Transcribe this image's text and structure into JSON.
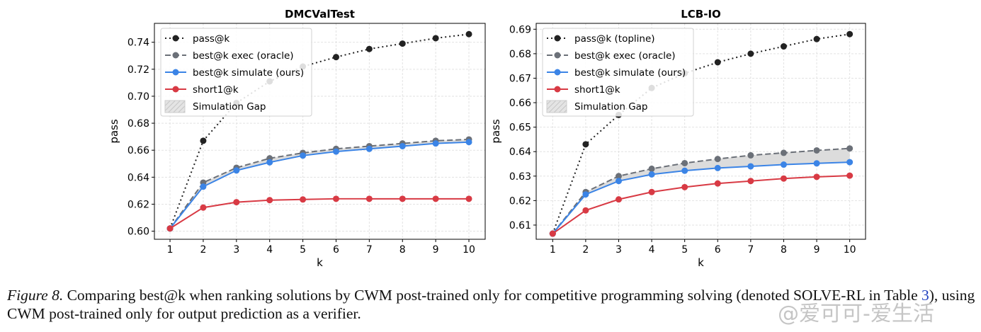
{
  "chart_data": [
    {
      "type": "line",
      "title": "DMCValTest",
      "xlabel": "k",
      "ylabel": "pass",
      "x": [
        1,
        2,
        3,
        4,
        5,
        6,
        7,
        8,
        9,
        10
      ],
      "xlim": [
        0.53,
        10.49
      ],
      "ylim": [
        0.594,
        0.754
      ],
      "yticks": [
        "0.60",
        "0.62",
        "0.64",
        "0.66",
        "0.68",
        "0.70",
        "0.72",
        "0.74"
      ],
      "grid": true,
      "legend_position": "top-left",
      "series": [
        {
          "name": "pass@k",
          "style": "dotted",
          "color": "#222222",
          "values": [
            0.602,
            0.667,
            0.695,
            0.711,
            0.722,
            0.729,
            0.735,
            0.739,
            0.743,
            0.746
          ]
        },
        {
          "name": "best@k exec (oracle)",
          "style": "dashed",
          "color": "#6b7078",
          "values": [
            0.602,
            0.636,
            0.647,
            0.654,
            0.658,
            0.661,
            0.663,
            0.665,
            0.667,
            0.668
          ]
        },
        {
          "name": "best@k simulate (ours)",
          "style": "solid",
          "color": "#3b84e6",
          "values": [
            0.602,
            0.633,
            0.645,
            0.651,
            0.656,
            0.659,
            0.661,
            0.663,
            0.665,
            0.666
          ]
        },
        {
          "name": "short1@k",
          "style": "solid",
          "color": "#d83a44",
          "values": [
            0.602,
            0.6175,
            0.6215,
            0.623,
            0.6235,
            0.624,
            0.624,
            0.624,
            0.624,
            0.624
          ]
        }
      ],
      "gap_label": "Simulation Gap"
    },
    {
      "type": "line",
      "title": "LCB-IO",
      "xlabel": "k",
      "ylabel": "pass",
      "x": [
        1,
        2,
        3,
        4,
        5,
        6,
        7,
        8,
        9,
        10
      ],
      "xlim": [
        0.5,
        10.48
      ],
      "ylim": [
        0.6042,
        0.6924
      ],
      "yticks": [
        "0.61",
        "0.62",
        "0.63",
        "0.64",
        "0.65",
        "0.66",
        "0.67",
        "0.68",
        "0.69"
      ],
      "grid": true,
      "legend_position": "top-left",
      "series": [
        {
          "name": "pass@k (topline)",
          "style": "dotted",
          "color": "#222222",
          "values": [
            0.6065,
            0.643,
            0.655,
            0.666,
            0.672,
            0.6765,
            0.68,
            0.683,
            0.686,
            0.688
          ]
        },
        {
          "name": "best@k exec (oracle)",
          "style": "dashed",
          "color": "#6b7078",
          "values": [
            0.6065,
            0.6235,
            0.63,
            0.633,
            0.6353,
            0.637,
            0.6385,
            0.6395,
            0.6405,
            0.6413
          ]
        },
        {
          "name": "best@k simulate (ours)",
          "style": "solid",
          "color": "#3b84e6",
          "values": [
            0.6065,
            0.6225,
            0.628,
            0.6307,
            0.6322,
            0.6333,
            0.634,
            0.6347,
            0.6352,
            0.6357
          ]
        },
        {
          "name": "short1@k",
          "style": "solid",
          "color": "#d83a44",
          "values": [
            0.6065,
            0.616,
            0.6205,
            0.6235,
            0.6255,
            0.627,
            0.628,
            0.629,
            0.6297,
            0.6302
          ]
        }
      ],
      "gap_label": "Simulation Gap"
    }
  ],
  "caption": {
    "figure_label": "Figure 8.",
    "text_before_ref": " Comparing best@k when ranking solutions by CWM post-trained only for competitive programming solving (denoted SOLVE-RL in Table ",
    "ref": "3",
    "text_after_ref": "), using CWM post-trained only for output prediction as a verifier."
  },
  "watermark": "@爱可可-爱生活"
}
